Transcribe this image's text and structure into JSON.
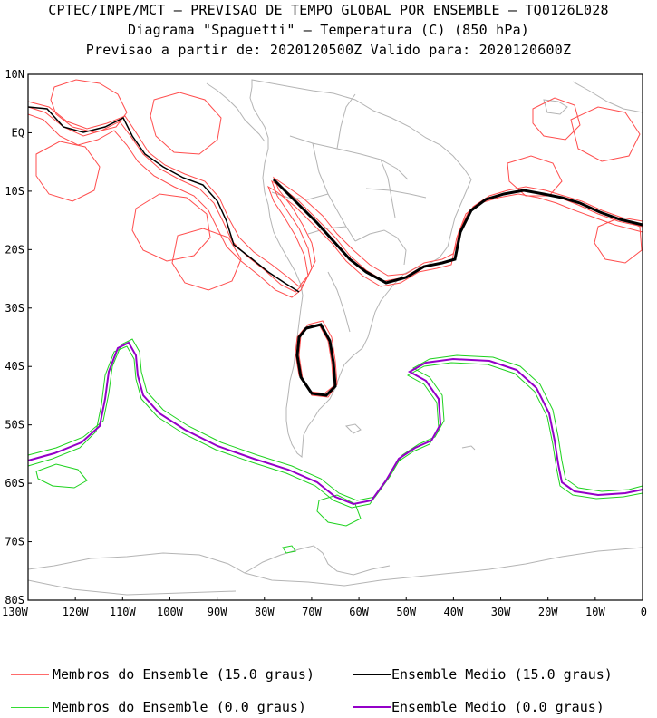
{
  "header": {
    "line1": "CPTEC/INPE/MCT — PREVISAO DE TEMPO GLOBAL POR ENSEMBLE — TQ0126L028",
    "line2": "Diagrama \"Spaguetti\" — Temperatura (C) (850 hPa)",
    "line3": "Previsao a partir de: 2020120500Z  Valido para: 2020120600Z"
  },
  "map": {
    "lat_labels": [
      "10N",
      "EQ",
      "10S",
      "20S",
      "30S",
      "40S",
      "50S",
      "60S",
      "70S",
      "80S"
    ],
    "lon_labels": [
      "130W",
      "120W",
      "110W",
      "100W",
      "90W",
      "80W",
      "70W",
      "60W",
      "50W",
      "40W",
      "30W",
      "20W",
      "10W",
      "0"
    ],
    "lat_range": [
      -80,
      10
    ],
    "lon_range": [
      -130,
      0
    ],
    "coastline_color": "#b4b4b4",
    "series_colors": {
      "members_15": "#ff4d4d",
      "mean_15": "#000000",
      "members_0": "#1ed21e",
      "mean_0": "#9400c8"
    }
  },
  "legend": {
    "items": [
      {
        "label": "Membros do Ensemble (15.0 graus)",
        "color": "#ff6b6b"
      },
      {
        "label": "Ensemble Medio (15.0 graus)",
        "color": "#000000"
      },
      {
        "label": "Membros do Ensemble (0.0 graus)",
        "color": "#33dd33"
      },
      {
        "label": "Ensemble Medio (0.0 graus)",
        "color": "#9400c8"
      }
    ]
  }
}
